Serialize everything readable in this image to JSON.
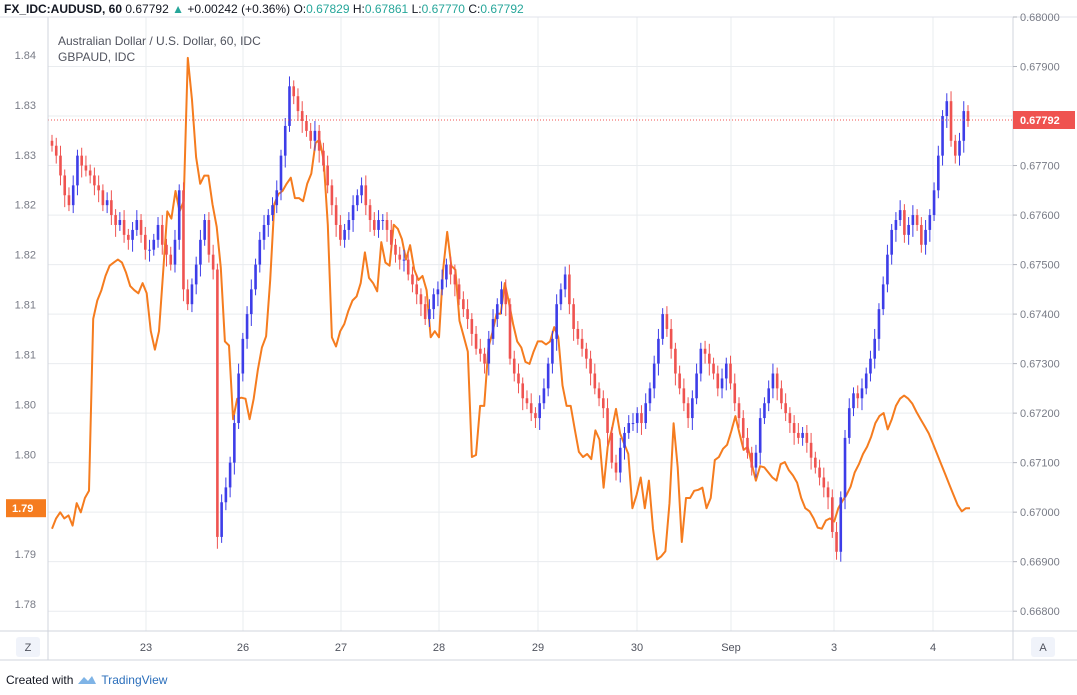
{
  "header": {
    "symbol": "FX_IDC:AUDUSD, 60",
    "last": "0.67792",
    "arrow": "▲",
    "change": "+0.00242 (+0.36%)",
    "o_label": "O:",
    "o_value": "0.67829",
    "h_label": "H:",
    "h_value": "0.67861",
    "l_label": "L:",
    "l_value": "0.67770",
    "c_label": "C:",
    "c_value": "0.67792"
  },
  "legend": {
    "main": "Australian Dollar / U.S. Dollar, 60, IDC",
    "compare": "GBPAUD, IDC"
  },
  "footer": {
    "created_with": "Created with",
    "brand": "TradingView"
  },
  "buttons": {
    "left": "Z",
    "right": "A"
  },
  "colors": {
    "up_candle": "#3d3de8",
    "down_candle": "#ef5350",
    "compare_line": "#f57c1f",
    "last_price": "#ef5350",
    "grid": "#e9ecef"
  },
  "chart_data": {
    "type": "line",
    "title": "Australian Dollar / U.S. Dollar, 60, IDC",
    "x_ticks": [
      "23",
      "26",
      "27",
      "28",
      "29",
      "30",
      "Sep",
      "3",
      "4"
    ],
    "right_axis": {
      "ticks": [
        "0.68000",
        "0.67900",
        "0.67800",
        "0.67700",
        "0.67600",
        "0.67500",
        "0.67400",
        "0.67300",
        "0.67200",
        "0.67100",
        "0.67000",
        "0.66900",
        "0.66800"
      ],
      "range": [
        0.6676,
        0.68
      ]
    },
    "left_axis": {
      "ticks": [
        "1.84",
        "1.83",
        "1.83",
        "1.82",
        "1.82",
        "1.81",
        "1.81",
        "1.80",
        "1.80",
        "1.79",
        "1.79",
        "1.78"
      ],
      "range": [
        1.7815,
        1.8415
      ]
    },
    "last_price_label": "0.67792",
    "last_price": 0.67792,
    "compare_last_label": "1.79",
    "compare_last": 1.7935,
    "grid": true,
    "series": [
      {
        "name": "AUDUSD",
        "kind": "candlestick",
        "axis": "right",
        "close": [
          0.6774,
          0.6772,
          0.6768,
          0.6764,
          0.6762,
          0.6766,
          0.6772,
          0.677,
          0.6769,
          0.6768,
          0.6766,
          0.6765,
          0.6762,
          0.6763,
          0.676,
          0.6758,
          0.6759,
          0.6756,
          0.6755,
          0.6757,
          0.6759,
          0.6756,
          0.6753,
          0.6753,
          0.6755,
          0.6758,
          0.6754,
          0.6752,
          0.675,
          0.6755,
          0.6765,
          0.6745,
          0.6742,
          0.6746,
          0.675,
          0.6755,
          0.6759,
          0.6752,
          0.6749,
          0.6695,
          0.6702,
          0.6705,
          0.671,
          0.6718,
          0.6728,
          0.6735,
          0.674,
          0.6745,
          0.675,
          0.6755,
          0.6758,
          0.676,
          0.6762,
          0.6765,
          0.6772,
          0.6778,
          0.6786,
          0.6784,
          0.6781,
          0.6779,
          0.6777,
          0.6775,
          0.6777,
          0.6773,
          0.677,
          0.6766,
          0.6762,
          0.6758,
          0.6755,
          0.6757,
          0.6759,
          0.6762,
          0.6764,
          0.6766,
          0.6762,
          0.6759,
          0.6757,
          0.6759,
          0.6759,
          0.6757,
          0.6754,
          0.6752,
          0.6751,
          0.6751,
          0.6748,
          0.6746,
          0.6744,
          0.6742,
          0.6739,
          0.6741,
          0.6744,
          0.6745,
          0.6747,
          0.675,
          0.6748,
          0.6746,
          0.6743,
          0.6741,
          0.6739,
          0.6736,
          0.6733,
          0.6732,
          0.673,
          0.6735,
          0.6739,
          0.6742,
          0.6745,
          0.6742,
          0.6731,
          0.6728,
          0.6726,
          0.6723,
          0.6722,
          0.672,
          0.6719,
          0.6722,
          0.6725,
          0.673,
          0.6735,
          0.6742,
          0.6745,
          0.6748,
          0.6742,
          0.6737,
          0.6735,
          0.6733,
          0.6731,
          0.6728,
          0.6725,
          0.6723,
          0.6721,
          0.6716,
          0.671,
          0.6708,
          0.6713,
          0.6716,
          0.6718,
          0.6718,
          0.672,
          0.6718,
          0.6722,
          0.6725,
          0.673,
          0.6735,
          0.674,
          0.6737,
          0.6733,
          0.6728,
          0.6725,
          0.6722,
          0.6719,
          0.6723,
          0.6728,
          0.6733,
          0.6732,
          0.673,
          0.6728,
          0.6725,
          0.6727,
          0.673,
          0.6726,
          0.6722,
          0.6719,
          0.6715,
          0.6712,
          0.6709,
          0.6712,
          0.6719,
          0.6722,
          0.6725,
          0.6728,
          0.6725,
          0.6722,
          0.672,
          0.6718,
          0.6716,
          0.6715,
          0.6716,
          0.6714,
          0.6711,
          0.6709,
          0.6707,
          0.6705,
          0.6703,
          0.6696,
          0.6692,
          0.6703,
          0.6715,
          0.6721,
          0.6724,
          0.6723,
          0.6725,
          0.6728,
          0.6731,
          0.6735,
          0.6741,
          0.6746,
          0.6752,
          0.6757,
          0.6759,
          0.6761,
          0.6756,
          0.6758,
          0.676,
          0.6758,
          0.6754,
          0.6757,
          0.676,
          0.6765,
          0.6772,
          0.678,
          0.6783,
          0.6775,
          0.6772,
          0.6775,
          0.6781,
          0.6779
        ],
        "open_first": 0.6775
      },
      {
        "name": "GBPAUD",
        "kind": "line",
        "axis": "left",
        "values": [
          1.7915,
          1.7925,
          1.7931,
          1.7925,
          1.7928,
          1.7918,
          1.794,
          1.7931,
          1.7945,
          1.7952,
          1.812,
          1.8138,
          1.8148,
          1.8162,
          1.8172,
          1.8175,
          1.8178,
          1.8175,
          1.8165,
          1.8152,
          1.8148,
          1.8145,
          1.8155,
          1.8145,
          1.8108,
          1.809,
          1.8108,
          1.8165,
          1.8225,
          1.8218,
          1.8245,
          1.8225,
          1.8235,
          1.8375,
          1.8334,
          1.8278,
          1.8252,
          1.826,
          1.826,
          1.8232,
          1.821,
          1.817,
          1.8098,
          1.8094,
          1.8022,
          1.8042,
          1.8043,
          1.8042,
          1.8022,
          1.8042,
          1.807,
          1.8092,
          1.8103,
          1.8158,
          1.8232,
          1.8242,
          1.8245,
          1.8252,
          1.8258,
          1.8238,
          1.8238,
          1.8235,
          1.8252,
          1.8262,
          1.8292,
          1.8295,
          1.8275,
          1.8212,
          1.8102,
          1.8093,
          1.8108,
          1.8115,
          1.8128,
          1.8138,
          1.8142,
          1.8155,
          1.8185,
          1.816,
          1.8155,
          1.8147,
          1.8195,
          1.8175,
          1.8172,
          1.8212,
          1.8208,
          1.8198,
          1.8178,
          1.8192,
          1.8168,
          1.8158,
          1.8162,
          1.8148,
          1.8102,
          1.8108,
          1.8102,
          1.8168,
          1.8205,
          1.8172,
          1.8168,
          1.8118,
          1.8103,
          1.8088,
          1.7985,
          1.7987,
          1.8035,
          1.8035,
          1.8092,
          1.8107,
          1.8125,
          1.8125,
          1.8155,
          1.8136,
          1.8115,
          1.8098,
          1.8092,
          1.8078,
          1.8076,
          1.8088,
          1.8098,
          1.8098,
          1.8095,
          1.8098,
          1.8112,
          1.8102,
          1.8055,
          1.8035,
          1.8035,
          1.8012,
          1.799,
          1.7985,
          1.7988,
          1.7983,
          1.8011,
          1.8002,
          1.7955,
          1.7995,
          1.8012,
          1.8032,
          1.8008,
          1.7998,
          1.7988,
          1.7935,
          1.7948,
          1.7965,
          1.7935,
          1.7962,
          1.7915,
          1.7885,
          1.7888,
          1.7893,
          1.794,
          1.8018,
          1.7975,
          1.7902,
          1.7945,
          1.7945,
          1.7952,
          1.7953,
          1.7955,
          1.7935,
          1.7945,
          1.7982,
          1.7985,
          1.7993,
          1.7997,
          1.801,
          1.8025,
          1.8008,
          1.7992,
          1.7995,
          1.7978,
          1.7962,
          1.7976,
          1.7975,
          1.797,
          1.7965,
          1.7962,
          1.7978,
          1.798,
          1.7972,
          1.7967,
          1.796,
          1.7945,
          1.7935,
          1.7932,
          1.7925,
          1.7916,
          1.7915,
          1.7923,
          1.7925,
          1.7922,
          1.7935,
          1.7942,
          1.7948,
          1.7956,
          1.797,
          1.7978,
          1.7988,
          1.7995,
          1.8005,
          1.8018,
          1.8025,
          1.8028,
          1.8012,
          1.8022,
          1.8035,
          1.8042,
          1.8045,
          1.8042,
          1.8037,
          1.8029,
          1.8022,
          1.8015,
          1.8008,
          1.7998,
          1.7988,
          1.7978,
          1.7968,
          1.7958,
          1.7948,
          1.7938,
          1.7932,
          1.7935,
          1.7935
        ]
      }
    ]
  }
}
